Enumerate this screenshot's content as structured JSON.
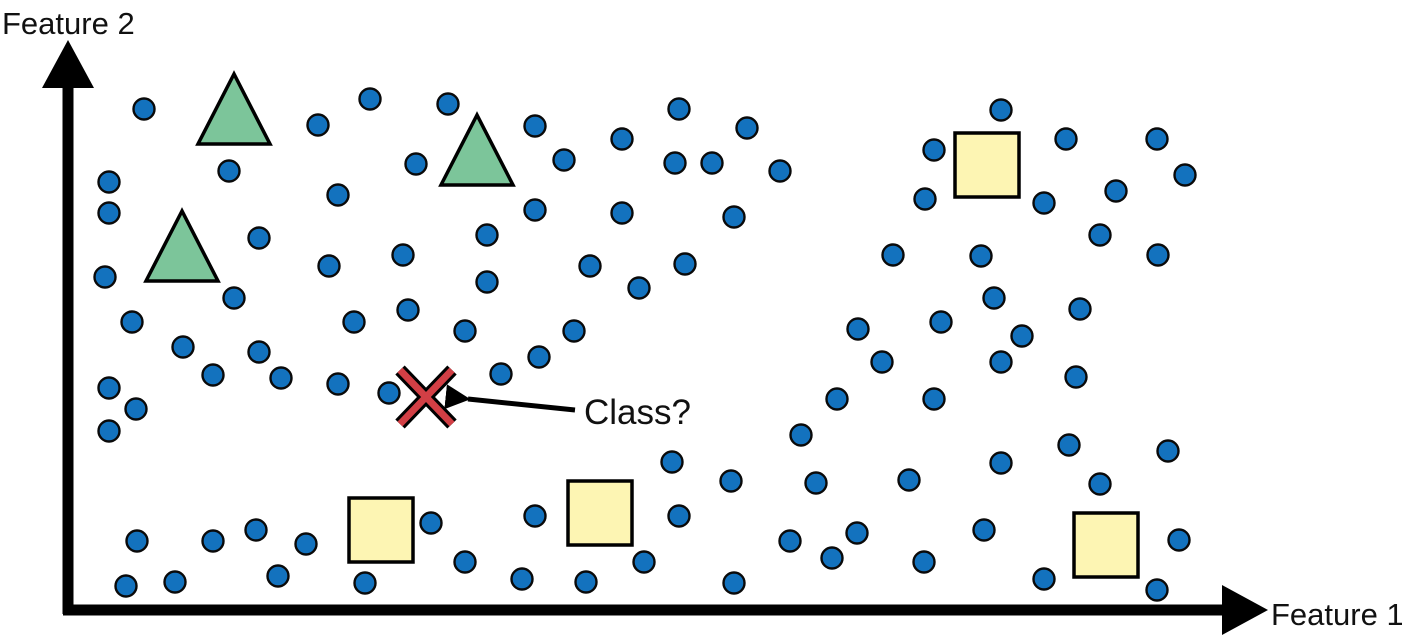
{
  "axes": {
    "x_label": "Feature 1",
    "y_label": "Feature 2"
  },
  "query": {
    "label": "Class?",
    "symbol": "cross-icon"
  },
  "colors": {
    "unlabeled": "#1372BE",
    "unlabeled_outline": "#0A0A0A",
    "triangle_class": "#7CC59A",
    "square_class": "#FDF5B3",
    "query_mark": "#D23F45",
    "axis": "#000000"
  },
  "marker_types": {
    "unlabeled": "circle",
    "class_a": "triangle",
    "class_b": "square",
    "query": "x-cross"
  }
}
